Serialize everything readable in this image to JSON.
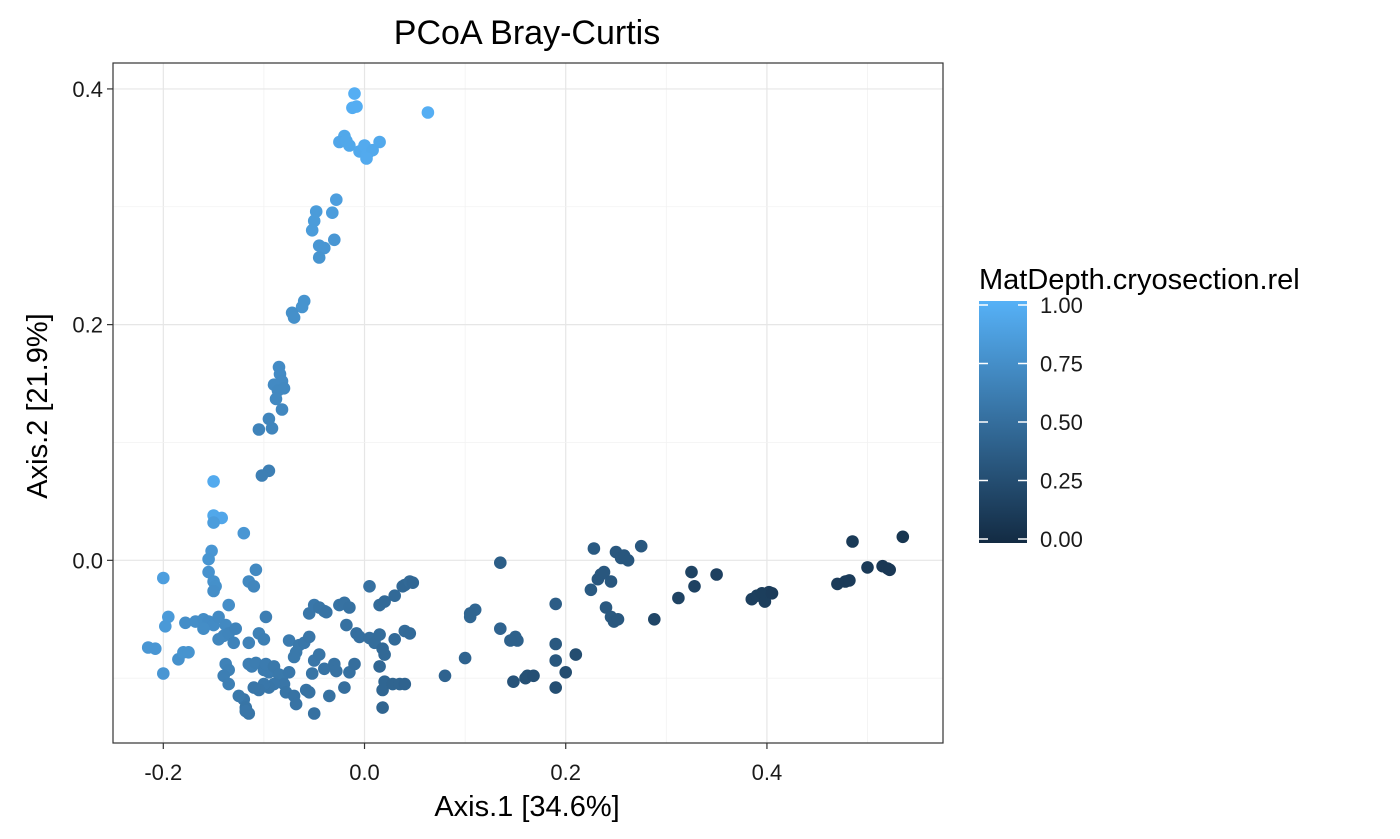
{
  "chart_data": {
    "type": "scatter",
    "title": "PCoA Bray-Curtis",
    "xlabel": "Axis.1   [34.6%]",
    "ylabel": "Axis.2   [21.9%]",
    "xlim": [
      -0.25,
      0.575
    ],
    "ylim": [
      -0.155,
      0.422
    ],
    "x_ticks": [
      -0.2,
      0.0,
      0.2,
      0.4
    ],
    "x_tick_labels": [
      "-0.2",
      "0.0",
      "0.2",
      "0.4"
    ],
    "y_ticks": [
      0.0,
      0.2,
      0.4
    ],
    "y_tick_labels": [
      "0.0",
      "0.2",
      "0.4"
    ],
    "grid": true,
    "legend": {
      "title": "MatDepth.cryosection.rel",
      "type": "colorbar",
      "placement": "right",
      "ticks": [
        0.0,
        0.25,
        0.5,
        0.75,
        1.0
      ],
      "tick_labels": [
        "0.00",
        "0.25",
        "0.50",
        "0.75",
        "1.00"
      ],
      "low_color": "#132b43",
      "high_color": "#56b1f7"
    },
    "points": [
      [
        -0.01,
        0.396,
        0.98
      ],
      [
        -0.008,
        0.385,
        0.97
      ],
      [
        -0.012,
        0.384,
        0.97
      ],
      [
        0.063,
        0.38,
        0.98
      ],
      [
        -0.02,
        0.36,
        0.93
      ],
      [
        -0.025,
        0.355,
        0.92
      ],
      [
        -0.018,
        0.356,
        0.93
      ],
      [
        -0.015,
        0.352,
        0.93
      ],
      [
        -0.005,
        0.347,
        0.94
      ],
      [
        0.0,
        0.352,
        0.95
      ],
      [
        0.003,
        0.345,
        0.95
      ],
      [
        0.008,
        0.348,
        0.94
      ],
      [
        0.015,
        0.355,
        0.94
      ],
      [
        0.002,
        0.341,
        0.95
      ],
      [
        -0.028,
        0.306,
        0.86
      ],
      [
        -0.048,
        0.296,
        0.84
      ],
      [
        -0.032,
        0.295,
        0.85
      ],
      [
        -0.05,
        0.288,
        0.84
      ],
      [
        -0.052,
        0.28,
        0.84
      ],
      [
        -0.045,
        0.267,
        0.8
      ],
      [
        -0.04,
        0.265,
        0.8
      ],
      [
        -0.03,
        0.272,
        0.8
      ],
      [
        -0.045,
        0.257,
        0.78
      ],
      [
        -0.06,
        0.22,
        0.78
      ],
      [
        -0.062,
        0.215,
        0.78
      ],
      [
        -0.072,
        0.21,
        0.75
      ],
      [
        -0.07,
        0.206,
        0.75
      ],
      [
        -0.085,
        0.164,
        0.72
      ],
      [
        -0.084,
        0.158,
        0.72
      ],
      [
        -0.082,
        0.152,
        0.71
      ],
      [
        -0.09,
        0.149,
        0.71
      ],
      [
        -0.086,
        0.144,
        0.7
      ],
      [
        -0.08,
        0.146,
        0.7
      ],
      [
        -0.088,
        0.137,
        0.7
      ],
      [
        -0.082,
        0.128,
        0.69
      ],
      [
        -0.095,
        0.12,
        0.67
      ],
      [
        -0.092,
        0.112,
        0.67
      ],
      [
        -0.105,
        0.111,
        0.66
      ],
      [
        -0.095,
        0.076,
        0.63
      ],
      [
        -0.102,
        0.072,
        0.63
      ],
      [
        -0.15,
        0.067,
        0.95
      ],
      [
        -0.15,
        0.038,
        0.93
      ],
      [
        -0.142,
        0.036,
        0.92
      ],
      [
        -0.15,
        0.032,
        0.85
      ],
      [
        -0.12,
        0.023,
        0.8
      ],
      [
        -0.152,
        0.008,
        0.8
      ],
      [
        -0.155,
        0.001,
        0.79
      ],
      [
        -0.155,
        -0.01,
        0.77
      ],
      [
        -0.15,
        -0.018,
        0.76
      ],
      [
        -0.148,
        -0.022,
        0.75
      ],
      [
        -0.15,
        -0.026,
        0.74
      ],
      [
        -0.2,
        -0.015,
        0.86
      ],
      [
        -0.135,
        -0.038,
        0.74
      ],
      [
        -0.108,
        -0.008,
        0.7
      ],
      [
        -0.115,
        -0.018,
        0.7
      ],
      [
        -0.11,
        -0.022,
        0.68
      ],
      [
        -0.195,
        -0.048,
        0.83
      ],
      [
        -0.198,
        -0.056,
        0.82
      ],
      [
        -0.215,
        -0.074,
        0.8
      ],
      [
        -0.208,
        -0.075,
        0.8
      ],
      [
        -0.2,
        -0.096,
        0.8
      ],
      [
        -0.185,
        -0.084,
        0.76
      ],
      [
        -0.18,
        -0.078,
        0.78
      ],
      [
        -0.175,
        -0.078,
        0.78
      ],
      [
        -0.178,
        -0.053,
        0.74
      ],
      [
        -0.168,
        -0.052,
        0.74
      ],
      [
        -0.16,
        -0.05,
        0.73
      ],
      [
        -0.155,
        -0.052,
        0.72
      ],
      [
        -0.15,
        -0.055,
        0.72
      ],
      [
        -0.145,
        -0.048,
        0.71
      ],
      [
        -0.16,
        -0.058,
        0.73
      ],
      [
        -0.138,
        -0.055,
        0.7
      ],
      [
        -0.14,
        -0.064,
        0.68
      ],
      [
        -0.145,
        -0.067,
        0.68
      ],
      [
        -0.135,
        -0.062,
        0.67
      ],
      [
        -0.128,
        -0.058,
        0.66
      ],
      [
        -0.115,
        -0.07,
        0.65
      ],
      [
        -0.13,
        -0.07,
        0.66
      ],
      [
        -0.105,
        -0.062,
        0.64
      ],
      [
        -0.1,
        -0.067,
        0.63
      ],
      [
        -0.098,
        -0.048,
        0.62
      ],
      [
        -0.138,
        -0.088,
        0.65
      ],
      [
        -0.135,
        -0.093,
        0.64
      ],
      [
        -0.14,
        -0.098,
        0.63
      ],
      [
        -0.135,
        -0.105,
        0.63
      ],
      [
        -0.115,
        -0.088,
        0.62
      ],
      [
        -0.112,
        -0.09,
        0.62
      ],
      [
        -0.108,
        -0.087,
        0.61
      ],
      [
        -0.1,
        -0.093,
        0.6
      ],
      [
        -0.095,
        -0.095,
        0.6
      ],
      [
        -0.098,
        -0.088,
        0.6
      ],
      [
        -0.09,
        -0.09,
        0.58
      ],
      [
        -0.085,
        -0.097,
        0.58
      ],
      [
        -0.082,
        -0.102,
        0.58
      ],
      [
        -0.075,
        -0.095,
        0.57
      ],
      [
        -0.08,
        -0.105,
        0.56
      ],
      [
        -0.09,
        -0.105,
        0.57
      ],
      [
        -0.095,
        -0.108,
        0.56
      ],
      [
        -0.1,
        -0.105,
        0.57
      ],
      [
        -0.105,
        -0.11,
        0.56
      ],
      [
        -0.11,
        -0.108,
        0.56
      ],
      [
        -0.12,
        -0.118,
        0.56
      ],
      [
        -0.118,
        -0.125,
        0.55
      ],
      [
        -0.115,
        -0.13,
        0.55
      ],
      [
        -0.125,
        -0.115,
        0.58
      ],
      [
        -0.118,
        -0.128,
        0.56
      ],
      [
        -0.078,
        -0.112,
        0.55
      ],
      [
        -0.07,
        -0.115,
        0.54
      ],
      [
        -0.068,
        -0.122,
        0.54
      ],
      [
        -0.058,
        -0.11,
        0.54
      ],
      [
        -0.055,
        -0.112,
        0.53
      ],
      [
        -0.05,
        -0.13,
        0.52
      ],
      [
        -0.035,
        -0.115,
        0.52
      ],
      [
        -0.02,
        -0.108,
        0.5
      ],
      [
        -0.015,
        -0.095,
        0.52
      ],
      [
        -0.01,
        -0.088,
        0.5
      ],
      [
        -0.075,
        -0.068,
        0.6
      ],
      [
        -0.065,
        -0.072,
        0.58
      ],
      [
        -0.06,
        -0.07,
        0.57
      ],
      [
        -0.055,
        -0.065,
        0.56
      ],
      [
        -0.068,
        -0.078,
        0.58
      ],
      [
        -0.07,
        -0.082,
        0.58
      ],
      [
        -0.05,
        -0.085,
        0.56
      ],
      [
        -0.045,
        -0.08,
        0.55
      ],
      [
        -0.052,
        -0.096,
        0.55
      ],
      [
        -0.04,
        -0.092,
        0.54
      ],
      [
        -0.03,
        -0.088,
        0.53
      ],
      [
        -0.028,
        -0.094,
        0.53
      ],
      [
        -0.055,
        -0.045,
        0.56
      ],
      [
        -0.05,
        -0.038,
        0.57
      ],
      [
        -0.045,
        -0.04,
        0.55
      ],
      [
        -0.04,
        -0.043,
        0.55
      ],
      [
        -0.038,
        -0.044,
        0.54
      ],
      [
        -0.025,
        -0.038,
        0.54
      ],
      [
        -0.02,
        -0.036,
        0.53
      ],
      [
        -0.015,
        -0.04,
        0.52
      ],
      [
        -0.018,
        -0.055,
        0.52
      ],
      [
        -0.008,
        -0.062,
        0.51
      ],
      [
        -0.005,
        -0.065,
        0.51
      ],
      [
        0.005,
        -0.066,
        0.5
      ],
      [
        0.01,
        -0.07,
        0.49
      ],
      [
        0.015,
        -0.063,
        0.49
      ],
      [
        0.005,
        -0.022,
        0.52
      ],
      [
        0.015,
        -0.038,
        0.48
      ],
      [
        0.02,
        -0.035,
        0.47
      ],
      [
        0.03,
        -0.03,
        0.47
      ],
      [
        0.038,
        -0.022,
        0.46
      ],
      [
        0.04,
        -0.021,
        0.45
      ],
      [
        0.045,
        -0.018,
        0.46
      ],
      [
        0.048,
        -0.019,
        0.45
      ],
      [
        0.04,
        -0.06,
        0.48
      ],
      [
        0.045,
        -0.062,
        0.47
      ],
      [
        0.03,
        -0.067,
        0.47
      ],
      [
        0.02,
        -0.08,
        0.46
      ],
      [
        0.018,
        -0.075,
        0.46
      ],
      [
        0.015,
        -0.09,
        0.45
      ],
      [
        0.02,
        -0.103,
        0.44
      ],
      [
        0.018,
        -0.11,
        0.44
      ],
      [
        0.028,
        -0.105,
        0.43
      ],
      [
        0.035,
        -0.105,
        0.43
      ],
      [
        0.04,
        -0.105,
        0.42
      ],
      [
        0.018,
        -0.125,
        0.43
      ],
      [
        0.08,
        -0.098,
        0.42
      ],
      [
        0.1,
        -0.083,
        0.42
      ],
      [
        0.105,
        -0.048,
        0.44
      ],
      [
        0.11,
        -0.042,
        0.44
      ],
      [
        0.105,
        -0.045,
        0.43
      ],
      [
        0.135,
        -0.058,
        0.42
      ],
      [
        0.135,
        -0.002,
        0.38
      ],
      [
        0.15,
        -0.065,
        0.4
      ],
      [
        0.152,
        -0.068,
        0.4
      ],
      [
        0.145,
        -0.068,
        0.4
      ],
      [
        0.148,
        -0.103,
        0.3
      ],
      [
        0.16,
        -0.1,
        0.28
      ],
      [
        0.162,
        -0.098,
        0.28
      ],
      [
        0.168,
        -0.098,
        0.27
      ],
      [
        0.19,
        -0.037,
        0.37
      ],
      [
        0.19,
        -0.071,
        0.34
      ],
      [
        0.19,
        -0.085,
        0.33
      ],
      [
        0.19,
        -0.108,
        0.26
      ],
      [
        0.2,
        -0.095,
        0.25
      ],
      [
        0.21,
        -0.08,
        0.25
      ],
      [
        0.225,
        -0.025,
        0.35
      ],
      [
        0.228,
        0.01,
        0.35
      ],
      [
        0.232,
        -0.016,
        0.33
      ],
      [
        0.235,
        -0.012,
        0.33
      ],
      [
        0.238,
        -0.01,
        0.33
      ],
      [
        0.24,
        -0.04,
        0.34
      ],
      [
        0.245,
        -0.048,
        0.34
      ],
      [
        0.248,
        -0.052,
        0.33
      ],
      [
        0.252,
        -0.05,
        0.33
      ],
      [
        0.245,
        -0.018,
        0.33
      ],
      [
        0.25,
        0.007,
        0.33
      ],
      [
        0.255,
        0.002,
        0.33
      ],
      [
        0.258,
        0.004,
        0.32
      ],
      [
        0.262,
        0.0,
        0.32
      ],
      [
        0.275,
        0.012,
        0.33
      ],
      [
        0.288,
        -0.05,
        0.2
      ],
      [
        0.312,
        -0.032,
        0.18
      ],
      [
        0.325,
        -0.01,
        0.18
      ],
      [
        0.328,
        -0.022,
        0.17
      ],
      [
        0.35,
        -0.012,
        0.16
      ],
      [
        0.385,
        -0.033,
        0.15
      ],
      [
        0.39,
        -0.03,
        0.15
      ],
      [
        0.395,
        -0.028,
        0.14
      ],
      [
        0.398,
        -0.035,
        0.14
      ],
      [
        0.402,
        -0.027,
        0.14
      ],
      [
        0.405,
        -0.028,
        0.13
      ],
      [
        0.47,
        -0.02,
        0.13
      ],
      [
        0.478,
        -0.018,
        0.12
      ],
      [
        0.482,
        -0.017,
        0.12
      ],
      [
        0.485,
        0.016,
        0.11
      ],
      [
        0.5,
        -0.006,
        0.11
      ],
      [
        0.515,
        -0.005,
        0.1
      ],
      [
        0.52,
        -0.007,
        0.1
      ],
      [
        0.522,
        -0.008,
        0.1
      ],
      [
        0.535,
        0.02,
        0.08
      ]
    ]
  }
}
